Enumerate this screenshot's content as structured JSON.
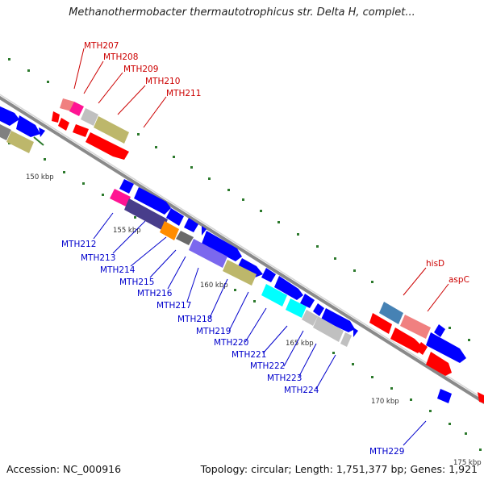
{
  "title": "Methanothermobacter thermautotrophicus str. Delta H, complet...",
  "footer": {
    "accession": "Accession: NC_000916",
    "topology": "Topology: circular; Length: 1,751,377 bp; Genes: 1,921"
  },
  "colors": {
    "forward_label": "#cc0000",
    "reverse_label": "#0000cc",
    "backbone": "#808080"
  },
  "ticks": [
    "150 kbp",
    "155 kbp",
    "160 kbp",
    "165 kbp",
    "170 kbp",
    "175 kbp"
  ],
  "forward_genes": [
    "MTH207",
    "MTH208",
    "MTH209",
    "MTH210",
    "MTH211",
    "hisD",
    "aspC"
  ],
  "reverse_genes": [
    "MTH212",
    "MTH213",
    "MTH214",
    "MTH215",
    "MTH216",
    "MTH217",
    "MTH218",
    "MTH219",
    "MTH220",
    "MTH221",
    "MTH222",
    "MTH223",
    "MTH224",
    "MTH229"
  ]
}
